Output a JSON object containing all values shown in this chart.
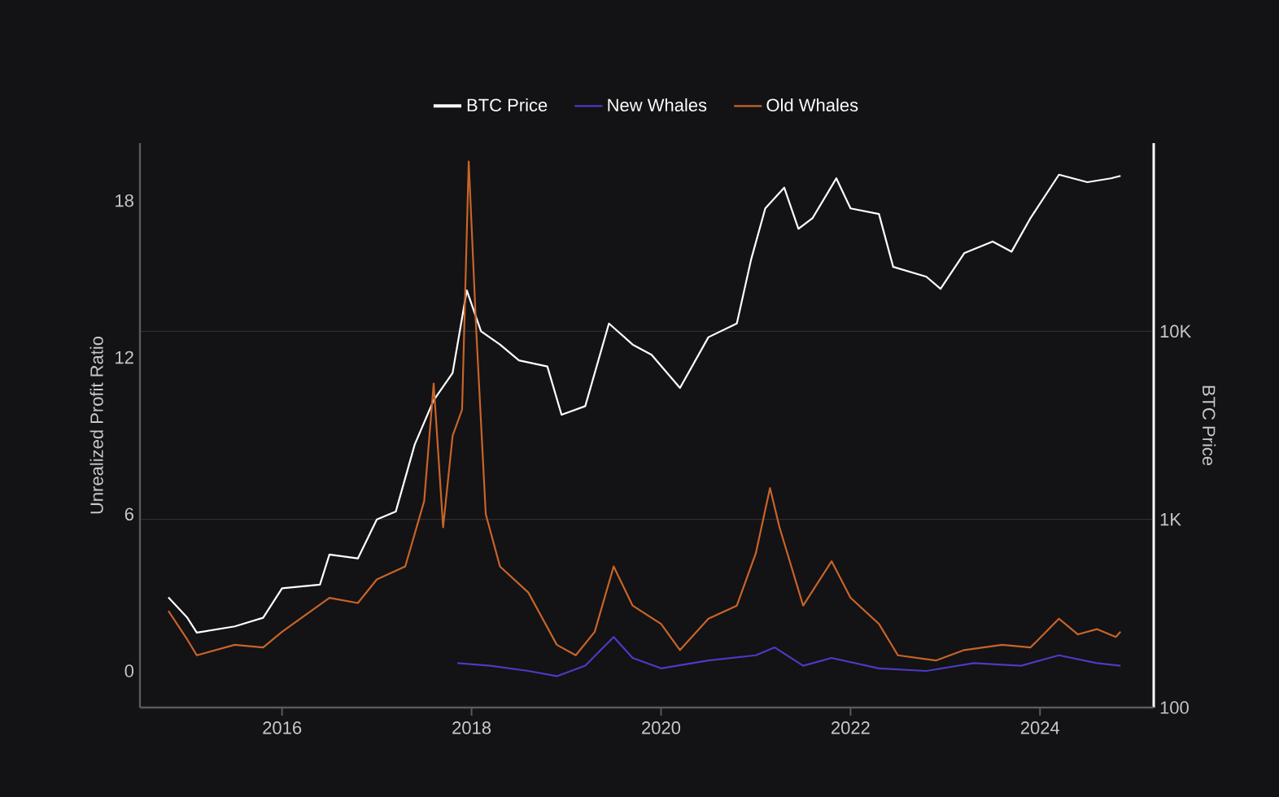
{
  "chart_data": {
    "type": "line",
    "ylabel": "Unrealized Profit Ratio",
    "y2label": "BTC Price",
    "xlim": [
      2014.5,
      2025.2
    ],
    "xticks": [
      2016,
      2018,
      2020,
      2022,
      2024
    ],
    "ylim": [
      -1.4,
      20.2
    ],
    "yticks": [
      0,
      6,
      12,
      18
    ],
    "y2lim": [
      100,
      100000
    ],
    "y2ticks": [
      {
        "value": 100,
        "label": "100"
      },
      {
        "value": 1000,
        "label": "1K"
      },
      {
        "value": 10000,
        "label": "10K"
      }
    ],
    "log": "y2",
    "grid": "y",
    "legend": "top",
    "series": [
      {
        "name": "BTC Price",
        "color": "#ffffff",
        "axis": "y2",
        "x": [
          2014.8,
          2015.0,
          2015.1,
          2015.5,
          2015.8,
          2016.0,
          2016.4,
          2016.5,
          2016.8,
          2017.0,
          2017.2,
          2017.4,
          2017.6,
          2017.8,
          2017.95,
          2018.1,
          2018.3,
          2018.5,
          2018.8,
          2018.95,
          2019.2,
          2019.45,
          2019.7,
          2019.9,
          2020.2,
          2020.5,
          2020.8,
          2020.95,
          2021.1,
          2021.3,
          2021.45,
          2021.6,
          2021.85,
          2022.0,
          2022.3,
          2022.45,
          2022.8,
          2022.95,
          2023.2,
          2023.5,
          2023.7,
          2023.9,
          2024.2,
          2024.5,
          2024.75,
          2024.85
        ],
        "values": [
          385,
          300,
          250,
          270,
          300,
          430,
          450,
          650,
          620,
          1000,
          1100,
          2500,
          4300,
          6000,
          16500,
          10000,
          8500,
          7000,
          6500,
          3600,
          4000,
          11000,
          8500,
          7500,
          5000,
          9300,
          11000,
          24000,
          45000,
          58000,
          35000,
          40000,
          65000,
          45000,
          42000,
          22000,
          19500,
          16800,
          26000,
          30000,
          26500,
          40000,
          68000,
          62000,
          65000,
          67000
        ]
      },
      {
        "name": "New Whales",
        "color": "#4b3bc4",
        "x": [
          2017.85,
          2018.2,
          2018.6,
          2018.9,
          2019.2,
          2019.5,
          2019.7,
          2020.0,
          2020.5,
          2021.0,
          2021.2,
          2021.5,
          2021.8,
          2022.3,
          2022.8,
          2023.3,
          2023.8,
          2024.2,
          2024.6,
          2024.85
        ],
        "values": [
          0.3,
          0.2,
          0.0,
          -0.2,
          0.2,
          1.3,
          0.5,
          0.1,
          0.4,
          0.6,
          0.9,
          0.2,
          0.5,
          0.1,
          0.0,
          0.3,
          0.2,
          0.6,
          0.3,
          0.2
        ]
      },
      {
        "name": "Old Whales",
        "color": "#c8642a",
        "x": [
          2014.8,
          2015.0,
          2015.1,
          2015.5,
          2015.8,
          2016.0,
          2016.5,
          2016.8,
          2017.0,
          2017.3,
          2017.5,
          2017.6,
          2017.7,
          2017.8,
          2017.9,
          2017.97,
          2018.05,
          2018.15,
          2018.3,
          2018.6,
          2018.9,
          2019.1,
          2019.3,
          2019.5,
          2019.7,
          2020.0,
          2020.2,
          2020.5,
          2020.8,
          2021.0,
          2021.15,
          2021.25,
          2021.5,
          2021.8,
          2022.0,
          2022.3,
          2022.5,
          2022.9,
          2023.2,
          2023.6,
          2023.9,
          2024.2,
          2024.4,
          2024.6,
          2024.8,
          2024.85
        ],
        "values": [
          2.3,
          1.2,
          0.6,
          1.0,
          0.9,
          1.5,
          2.8,
          2.6,
          3.5,
          4.0,
          6.5,
          11.0,
          5.5,
          9.0,
          10.0,
          19.5,
          13.0,
          6.0,
          4.0,
          3.0,
          1.0,
          0.6,
          1.5,
          4.0,
          2.5,
          1.8,
          0.8,
          2.0,
          2.5,
          4.5,
          7.0,
          5.5,
          2.5,
          4.2,
          2.8,
          1.8,
          0.6,
          0.4,
          0.8,
          1.0,
          0.9,
          2.0,
          1.4,
          1.6,
          1.3,
          1.5
        ]
      }
    ]
  }
}
